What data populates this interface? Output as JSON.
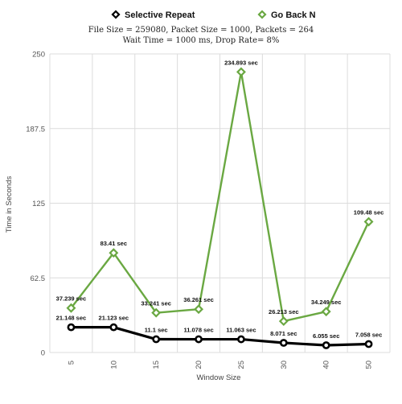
{
  "chart_data": {
    "type": "line",
    "subtitle_lines": [
      "File Size = 259080,  Packet Size = 1000,  Packets = 264",
      "Wait Time = 1000 ms,  Drop Rate= 8%"
    ],
    "xlabel": "Window Size",
    "ylabel": "Time in Seconds",
    "categories": [
      "5",
      "10",
      "15",
      "20",
      "25",
      "30",
      "40",
      "50"
    ],
    "ylim": [
      0,
      250
    ],
    "yticks": [
      "0",
      "62.5",
      "125",
      "187.5",
      "250"
    ],
    "grid": true,
    "legend_position": "top",
    "series": [
      {
        "name": "Selective Repeat",
        "color": "#000000",
        "values": [
          21.148,
          21.123,
          11.1,
          11.078,
          11.063,
          8.071,
          6.055,
          7.058
        ],
        "labels": [
          "21.148 sec",
          "21.123 sec",
          "11.1 sec",
          "11.078 sec",
          "11.063 sec",
          "8.071 sec",
          "6.055 sec",
          "7.058 sec"
        ]
      },
      {
        "name": "Go Back N",
        "color": "#6aa842",
        "values": [
          37.239,
          83.41,
          33.241,
          36.261,
          234.893,
          26.213,
          34.249,
          109.48
        ],
        "labels": [
          "37.239 sec",
          "83.41 sec",
          "33.241 sec",
          "36.261 sec",
          "234.893 sec",
          "26.213 sec",
          "34.249 sec",
          "109.48 sec"
        ]
      }
    ]
  }
}
